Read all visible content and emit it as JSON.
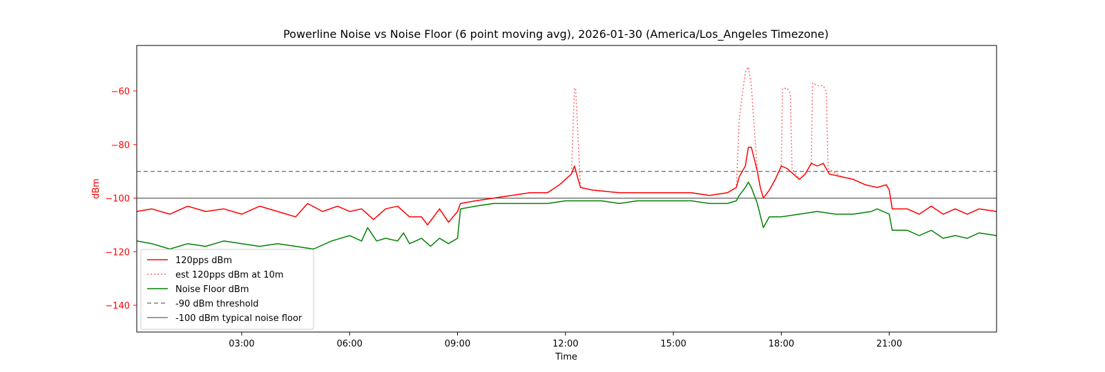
{
  "chart_data": {
    "type": "line",
    "title": "Powerline Noise vs Noise Floor (6 point moving avg), 2026-01-30 (America/Los_Angeles Timezone)",
    "xlabel": "Time",
    "ylabel": "dBm",
    "xlim": [
      "00:05",
      "23:59"
    ],
    "ylim": [
      -150,
      -43
    ],
    "x_ticks": [
      "03:00",
      "06:00",
      "09:00",
      "12:00",
      "15:00",
      "18:00",
      "21:00"
    ],
    "y_ticks": [
      -140,
      -120,
      -100,
      -80,
      -60
    ],
    "grid": false,
    "legend_position": "lower-left",
    "colors": {
      "pps": "#ff0000",
      "est": "#ff6666",
      "floor": "#008000",
      "threshold": "#808080",
      "typical": "#606060",
      "ylabel_color": "#ff0000"
    },
    "series": [
      {
        "name": "120pps dBm",
        "style": "solid",
        "points": [
          [
            "00:05",
            -105
          ],
          [
            "00:30",
            -104
          ],
          [
            "01:00",
            -106
          ],
          [
            "01:30",
            -103
          ],
          [
            "02:00",
            -105
          ],
          [
            "02:30",
            -104
          ],
          [
            "03:00",
            -106
          ],
          [
            "03:30",
            -103
          ],
          [
            "04:00",
            -105
          ],
          [
            "04:30",
            -107
          ],
          [
            "04:50",
            -102
          ],
          [
            "05:15",
            -105
          ],
          [
            "05:40",
            -103
          ],
          [
            "06:00",
            -105
          ],
          [
            "06:20",
            -104
          ],
          [
            "06:40",
            -108
          ],
          [
            "07:00",
            -104
          ],
          [
            "07:20",
            -103
          ],
          [
            "07:40",
            -107
          ],
          [
            "08:00",
            -107
          ],
          [
            "08:10",
            -110
          ],
          [
            "08:30",
            -104
          ],
          [
            "08:45",
            -109
          ],
          [
            "09:00",
            -105
          ],
          [
            "09:05",
            -102
          ],
          [
            "09:30",
            -101
          ],
          [
            "10:00",
            -100
          ],
          [
            "10:30",
            -99
          ],
          [
            "11:00",
            -98
          ],
          [
            "11:30",
            -98
          ],
          [
            "11:50",
            -95
          ],
          [
            "12:10",
            -91
          ],
          [
            "12:15",
            -88
          ],
          [
            "12:25",
            -96
          ],
          [
            "12:45",
            -97
          ],
          [
            "13:30",
            -98
          ],
          [
            "14:30",
            -98
          ],
          [
            "15:30",
            -98
          ],
          [
            "16:00",
            -99
          ],
          [
            "16:30",
            -98
          ],
          [
            "16:45",
            -96
          ],
          [
            "16:50",
            -92
          ],
          [
            "17:00",
            -88
          ],
          [
            "17:05",
            -81
          ],
          [
            "17:10",
            -81
          ],
          [
            "17:20",
            -90
          ],
          [
            "17:25",
            -96
          ],
          [
            "17:30",
            -100
          ],
          [
            "17:40",
            -97
          ],
          [
            "17:50",
            -93
          ],
          [
            "18:00",
            -88
          ],
          [
            "18:10",
            -89
          ],
          [
            "18:20",
            -91
          ],
          [
            "18:30",
            -93
          ],
          [
            "18:40",
            -91
          ],
          [
            "18:50",
            -87
          ],
          [
            "19:00",
            -88
          ],
          [
            "19:10",
            -87
          ],
          [
            "19:20",
            -91
          ],
          [
            "19:40",
            -92
          ],
          [
            "20:00",
            -93
          ],
          [
            "20:20",
            -95
          ],
          [
            "20:40",
            -96
          ],
          [
            "20:55",
            -95
          ],
          [
            "21:00",
            -97
          ],
          [
            "21:05",
            -104
          ],
          [
            "21:30",
            -104
          ],
          [
            "21:50",
            -106
          ],
          [
            "22:10",
            -103
          ],
          [
            "22:30",
            -106
          ],
          [
            "22:50",
            -104
          ],
          [
            "23:10",
            -106
          ],
          [
            "23:30",
            -104
          ],
          [
            "23:59",
            -105
          ]
        ]
      },
      {
        "name": "est 120pps dBm at 10m",
        "style": "dotted",
        "points": [
          [
            "00:05",
            -105
          ],
          [
            "00:30",
            -104
          ],
          [
            "01:00",
            -106
          ],
          [
            "01:30",
            -103
          ],
          [
            "02:00",
            -105
          ],
          [
            "02:30",
            -104
          ],
          [
            "03:00",
            -106
          ],
          [
            "03:30",
            -103
          ],
          [
            "04:00",
            -105
          ],
          [
            "04:30",
            -107
          ],
          [
            "04:50",
            -102
          ],
          [
            "05:15",
            -105
          ],
          [
            "05:40",
            -103
          ],
          [
            "06:00",
            -105
          ],
          [
            "06:20",
            -104
          ],
          [
            "06:40",
            -108
          ],
          [
            "07:00",
            -104
          ],
          [
            "07:20",
            -103
          ],
          [
            "07:40",
            -107
          ],
          [
            "08:00",
            -107
          ],
          [
            "08:10",
            -110
          ],
          [
            "08:30",
            -104
          ],
          [
            "08:45",
            -109
          ],
          [
            "09:00",
            -105
          ],
          [
            "09:05",
            -102
          ],
          [
            "09:30",
            -101
          ],
          [
            "10:00",
            -100
          ],
          [
            "10:30",
            -99
          ],
          [
            "11:00",
            -98
          ],
          [
            "11:30",
            -98
          ],
          [
            "11:50",
            -95
          ],
          [
            "12:10",
            -91
          ],
          [
            "12:15",
            -59
          ],
          [
            "12:17",
            -59
          ],
          [
            "12:25",
            -96
          ],
          [
            "12:45",
            -97
          ],
          [
            "13:30",
            -98
          ],
          [
            "14:30",
            -98
          ],
          [
            "15:30",
            -98
          ],
          [
            "16:00",
            -99
          ],
          [
            "16:30",
            -98
          ],
          [
            "16:45",
            -96
          ],
          [
            "16:50",
            -70
          ],
          [
            "17:00",
            -53
          ],
          [
            "17:05",
            -51
          ],
          [
            "17:10",
            -58
          ],
          [
            "17:20",
            -90
          ],
          [
            "17:25",
            -96
          ],
          [
            "17:30",
            -100
          ],
          [
            "17:40",
            -97
          ],
          [
            "17:50",
            -93
          ],
          [
            "18:00",
            -88
          ],
          [
            "18:02",
            -59
          ],
          [
            "18:10",
            -59
          ],
          [
            "18:15",
            -61
          ],
          [
            "18:18",
            -89
          ],
          [
            "18:30",
            -93
          ],
          [
            "18:40",
            -91
          ],
          [
            "18:50",
            -87
          ],
          [
            "18:52",
            -57
          ],
          [
            "19:00",
            -58
          ],
          [
            "19:10",
            -58
          ],
          [
            "19:15",
            -60
          ],
          [
            "19:18",
            -89
          ],
          [
            "19:40",
            -92
          ],
          [
            "20:00",
            -93
          ],
          [
            "20:20",
            -95
          ],
          [
            "20:40",
            -96
          ],
          [
            "20:55",
            -95
          ],
          [
            "21:00",
            -97
          ],
          [
            "21:05",
            -104
          ],
          [
            "21:30",
            -104
          ],
          [
            "21:50",
            -106
          ],
          [
            "22:10",
            -103
          ],
          [
            "22:30",
            -106
          ],
          [
            "22:50",
            -104
          ],
          [
            "23:10",
            -106
          ],
          [
            "23:30",
            -104
          ],
          [
            "23:59",
            -105
          ]
        ]
      },
      {
        "name": "Noise Floor dBm",
        "style": "solid",
        "points": [
          [
            "00:05",
            -116
          ],
          [
            "00:30",
            -117
          ],
          [
            "01:00",
            -119
          ],
          [
            "01:30",
            -117
          ],
          [
            "02:00",
            -118
          ],
          [
            "02:30",
            -116
          ],
          [
            "03:00",
            -117
          ],
          [
            "03:30",
            -118
          ],
          [
            "04:00",
            -117
          ],
          [
            "04:30",
            -118
          ],
          [
            "05:00",
            -119
          ],
          [
            "05:30",
            -116
          ],
          [
            "06:00",
            -114
          ],
          [
            "06:20",
            -116
          ],
          [
            "06:30",
            -111
          ],
          [
            "06:45",
            -116
          ],
          [
            "07:00",
            -115
          ],
          [
            "07:20",
            -116
          ],
          [
            "07:30",
            -113
          ],
          [
            "07:40",
            -117
          ],
          [
            "08:00",
            -115
          ],
          [
            "08:15",
            -118
          ],
          [
            "08:30",
            -115
          ],
          [
            "08:45",
            -117
          ],
          [
            "09:00",
            -115
          ],
          [
            "09:05",
            -104
          ],
          [
            "09:30",
            -103
          ],
          [
            "10:00",
            -102
          ],
          [
            "10:30",
            -102
          ],
          [
            "11:00",
            -102
          ],
          [
            "11:30",
            -102
          ],
          [
            "12:00",
            -101
          ],
          [
            "12:30",
            -101
          ],
          [
            "13:00",
            -101
          ],
          [
            "13:30",
            -102
          ],
          [
            "14:00",
            -101
          ],
          [
            "14:30",
            -101
          ],
          [
            "15:00",
            -101
          ],
          [
            "15:30",
            -101
          ],
          [
            "16:00",
            -102
          ],
          [
            "16:30",
            -102
          ],
          [
            "16:45",
            -101
          ],
          [
            "16:50",
            -99
          ],
          [
            "17:00",
            -96
          ],
          [
            "17:05",
            -94
          ],
          [
            "17:10",
            -96
          ],
          [
            "17:20",
            -102
          ],
          [
            "17:30",
            -111
          ],
          [
            "17:40",
            -107
          ],
          [
            "18:00",
            -107
          ],
          [
            "18:30",
            -106
          ],
          [
            "19:00",
            -105
          ],
          [
            "19:30",
            -106
          ],
          [
            "20:00",
            -106
          ],
          [
            "20:30",
            -105
          ],
          [
            "20:40",
            -104
          ],
          [
            "21:00",
            -106
          ],
          [
            "21:05",
            -112
          ],
          [
            "21:30",
            -112
          ],
          [
            "21:50",
            -114
          ],
          [
            "22:10",
            -112
          ],
          [
            "22:30",
            -115
          ],
          [
            "22:50",
            -114
          ],
          [
            "23:10",
            -115
          ],
          [
            "23:30",
            -113
          ],
          [
            "23:59",
            -114
          ]
        ]
      },
      {
        "name": "-90 dBm threshold",
        "style": "dashed",
        "constant": -90
      },
      {
        "name": "-100 dBm typical noise floor",
        "style": "solid",
        "constant": -100
      }
    ]
  }
}
